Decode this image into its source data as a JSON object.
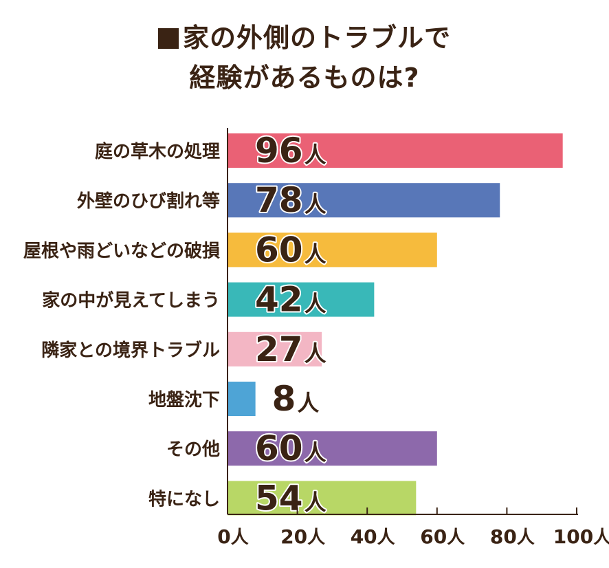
{
  "chart_data": {
    "type": "bar",
    "orientation": "horizontal",
    "title_lines": [
      "家の外側のトラブルで",
      "経験があるものは?"
    ],
    "title_marker": "■",
    "categories": [
      "庭の草木の処理",
      "外壁のひび割れ等",
      "屋根や雨どいなどの破損",
      "家の中が見えてしまう",
      "隣家との境界トラブル",
      "地盤沈下",
      "その他",
      "特になし"
    ],
    "values": [
      96,
      78,
      60,
      42,
      27,
      8,
      60,
      54
    ],
    "value_unit": "人",
    "colors": [
      "#ea6175",
      "#5877b8",
      "#f6bb3d",
      "#39b8b8",
      "#f3b6c4",
      "#4ea4d6",
      "#8d69ab",
      "#b8d766"
    ],
    "xlim": [
      0,
      100
    ],
    "xticks": [
      0,
      20,
      40,
      60,
      80,
      100
    ],
    "xtick_unit": "人",
    "text_color": "#3a2314",
    "grid": false
  }
}
